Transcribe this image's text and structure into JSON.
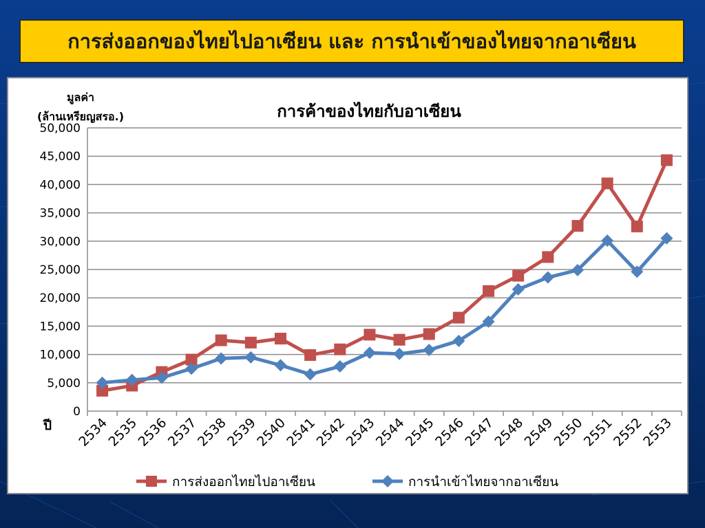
{
  "slide": {
    "title": "การส่งออกของไทยไปอาเซียน และ การนำเข้าของไทยจากอาเซียน"
  },
  "colors": {
    "slide_background": "#0a3d8f",
    "title_bar": "#ffcc00",
    "export_series": "#c0504d",
    "import_series": "#4f81bd"
  },
  "chart_data": {
    "type": "line",
    "title": "การค้าของไทยกับอาเซียน",
    "ylabel_line1": "มูลค่า",
    "ylabel_line2": "(ล้านเหรียญสรอ.)",
    "xlabel": "ปี",
    "ylim": [
      0,
      50000
    ],
    "yticks": [
      "0",
      "5,000",
      "10,000",
      "15,000",
      "20,000",
      "25,000",
      "30,000",
      "35,000",
      "40,000",
      "45,000",
      "50,000"
    ],
    "grid": true,
    "legend_position": "bottom",
    "categories": [
      "2534",
      "2535",
      "2536",
      "2537",
      "2538",
      "2539",
      "2540",
      "2541",
      "2542",
      "2543",
      "2544",
      "2545",
      "2546",
      "2547",
      "2548",
      "2549",
      "2550",
      "2551",
      "2552",
      "2553"
    ],
    "series": [
      {
        "name": "การส่งออกไทยไปอาเซียน",
        "color": "#c0504d",
        "marker": "square",
        "values": [
          3600,
          4500,
          6900,
          9100,
          12500,
          12100,
          12800,
          9900,
          10900,
          13500,
          12600,
          13600,
          16500,
          21200,
          23900,
          27200,
          32700,
          40200,
          32600,
          44300
        ]
      },
      {
        "name": "การนำเข้าไทยจากอาเซียน",
        "color": "#4f81bd",
        "marker": "diamond",
        "values": [
          5000,
          5500,
          5900,
          7500,
          9300,
          9500,
          8100,
          6500,
          7900,
          10300,
          10100,
          10800,
          12400,
          15800,
          21500,
          23600,
          24900,
          30100,
          24600,
          30500
        ]
      }
    ]
  }
}
